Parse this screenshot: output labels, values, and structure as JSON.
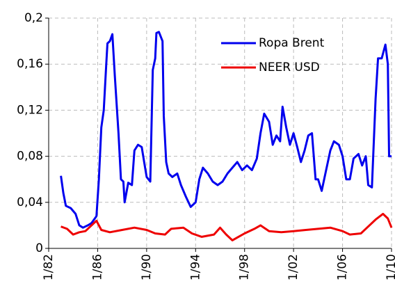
{
  "chart_data": {
    "type": "line",
    "xlim": [
      1982,
      2010
    ],
    "xticks": [
      {
        "value": 1982,
        "label": "1/82"
      },
      {
        "value": 1986,
        "label": "1/86"
      },
      {
        "value": 1990,
        "label": "1/90"
      },
      {
        "value": 1994,
        "label": "1/94"
      },
      {
        "value": 1998,
        "label": "1/98"
      },
      {
        "value": 2002,
        "label": "1/02"
      },
      {
        "value": 2006,
        "label": "1/06"
      },
      {
        "value": 2010,
        "label": "1/10"
      }
    ],
    "ylim": [
      0,
      0.2
    ],
    "yticks": [
      0,
      {
        "value": 0.04,
        "label": "0,04"
      },
      {
        "value": 0.08,
        "label": "0,08"
      },
      {
        "value": 0.12,
        "label": "0,12"
      },
      {
        "value": 0.16,
        "label": "0,16"
      },
      {
        "value": 0.2,
        "label": "0,2"
      }
    ],
    "grid": true,
    "legend": "upper right",
    "series": [
      {
        "name": "Ropa Brent",
        "color": "#0000ee",
        "x": [
          1983.0,
          1983.2,
          1983.4,
          1983.8,
          1984.2,
          1984.5,
          1984.8,
          1985.2,
          1985.5,
          1985.9,
          1986.1,
          1986.3,
          1986.5,
          1986.7,
          1986.8,
          1987.0,
          1987.2,
          1987.4,
          1987.7,
          1987.9,
          1988.1,
          1988.2,
          1988.5,
          1988.8,
          1989.0,
          1989.3,
          1989.6,
          1989.8,
          1990.0,
          1990.3,
          1990.5,
          1990.7,
          1990.8,
          1991.0,
          1991.3,
          1991.4,
          1991.6,
          1991.8,
          1992.1,
          1992.5,
          1992.8,
          1993.2,
          1993.6,
          1994.0,
          1994.3,
          1994.6,
          1995.0,
          1995.4,
          1995.8,
          1996.2,
          1996.6,
          1997.0,
          1997.4,
          1997.8,
          1998.2,
          1998.6,
          1999.0,
          1999.3,
          1999.6,
          2000.0,
          2000.3,
          2000.6,
          2000.9,
          2001.1,
          2001.4,
          2001.7,
          2002.0,
          2002.3,
          2002.6,
          2002.9,
          2003.2,
          2003.5,
          2003.8,
          2004.0,
          2004.3,
          2004.6,
          2005.0,
          2005.3,
          2005.7,
          2006.0,
          2006.3,
          2006.6,
          2006.9,
          2007.3,
          2007.6,
          2007.9,
          2008.1,
          2008.4,
          2008.7,
          2008.9,
          2009.2,
          2009.5,
          2009.7,
          2009.8,
          2010.0
        ],
        "values": [
          0.063,
          0.048,
          0.037,
          0.035,
          0.03,
          0.02,
          0.018,
          0.02,
          0.022,
          0.028,
          0.06,
          0.105,
          0.12,
          0.16,
          0.178,
          0.18,
          0.186,
          0.15,
          0.1,
          0.06,
          0.058,
          0.04,
          0.057,
          0.055,
          0.085,
          0.09,
          0.088,
          0.075,
          0.062,
          0.058,
          0.155,
          0.165,
          0.187,
          0.188,
          0.18,
          0.115,
          0.075,
          0.065,
          0.062,
          0.065,
          0.055,
          0.045,
          0.036,
          0.04,
          0.06,
          0.07,
          0.065,
          0.058,
          0.055,
          0.058,
          0.065,
          0.07,
          0.075,
          0.068,
          0.072,
          0.068,
          0.078,
          0.1,
          0.117,
          0.11,
          0.09,
          0.098,
          0.093,
          0.123,
          0.105,
          0.09,
          0.1,
          0.088,
          0.075,
          0.085,
          0.098,
          0.1,
          0.06,
          0.06,
          0.05,
          0.065,
          0.085,
          0.093,
          0.09,
          0.08,
          0.06,
          0.06,
          0.078,
          0.082,
          0.072,
          0.08,
          0.055,
          0.053,
          0.13,
          0.165,
          0.165,
          0.177,
          0.16,
          0.08,
          0.08
        ]
      },
      {
        "name": "NEER USD",
        "color": "#ee0000",
        "x": [
          1983.0,
          1983.5,
          1984.0,
          1984.5,
          1985.0,
          1985.5,
          1985.9,
          1986.3,
          1987.0,
          1988.0,
          1989.0,
          1990.0,
          1990.7,
          1991.5,
          1992.0,
          1993.0,
          1993.7,
          1994.5,
          1995.5,
          1996.0,
          1996.5,
          1997.0,
          1997.5,
          1998.0,
          1998.8,
          1999.3,
          2000.0,
          2001.0,
          2002.0,
          2003.0,
          2004.0,
          2005.0,
          2006.0,
          2006.6,
          2007.5,
          2008.0,
          2008.7,
          2009.3,
          2009.7,
          2010.0
        ],
        "values": [
          0.019,
          0.017,
          0.012,
          0.014,
          0.015,
          0.02,
          0.024,
          0.016,
          0.014,
          0.016,
          0.018,
          0.016,
          0.013,
          0.012,
          0.017,
          0.018,
          0.013,
          0.01,
          0.012,
          0.018,
          0.012,
          0.007,
          0.01,
          0.013,
          0.017,
          0.02,
          0.015,
          0.014,
          0.015,
          0.016,
          0.017,
          0.018,
          0.015,
          0.012,
          0.013,
          0.018,
          0.025,
          0.03,
          0.026,
          0.018
        ]
      }
    ]
  }
}
